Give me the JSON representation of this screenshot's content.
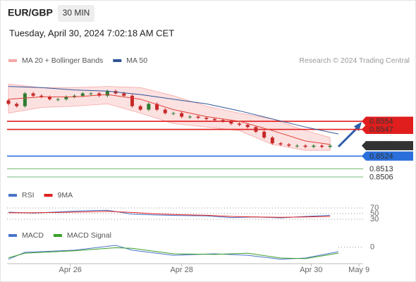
{
  "header": {
    "symbol": "EUR/GBP",
    "interval": "30 MIN",
    "timestamp": "Tuesday, April 30, 2024 7:02:18 AM CET",
    "credit": "Research © 2024 Trading Central"
  },
  "chart_data": [
    {
      "type": "candlestick",
      "xlim": [
        0,
        43
      ],
      "ylim": [
        0.8505,
        0.8595
      ],
      "up_color": "#2e7d32",
      "down_color": "#c62828",
      "open": [
        0.8572,
        0.8569,
        0.8567,
        0.8578,
        0.8576,
        0.8575,
        0.8573,
        0.8573,
        0.8575,
        0.8576,
        0.8578,
        0.8578,
        0.8576,
        0.858,
        0.8578,
        0.8576,
        0.8567,
        0.8564,
        0.8569,
        0.8564,
        0.8561,
        0.8561,
        0.8558,
        0.8558,
        0.8557,
        0.8556,
        0.8555,
        0.8554,
        0.8552,
        0.8551,
        0.8549,
        0.8545,
        0.854,
        0.8535,
        0.8534,
        0.8533,
        0.8533,
        0.8532,
        0.8533,
        0.8532
      ],
      "close": [
        0.8569,
        0.8567,
        0.8578,
        0.8576,
        0.8575,
        0.8573,
        0.8573,
        0.8575,
        0.8576,
        0.8578,
        0.8578,
        0.8576,
        0.858,
        0.8578,
        0.8576,
        0.8567,
        0.8564,
        0.8569,
        0.8564,
        0.8561,
        0.8561,
        0.8558,
        0.8558,
        0.8557,
        0.8556,
        0.8555,
        0.8554,
        0.8552,
        0.8551,
        0.8549,
        0.8545,
        0.854,
        0.8535,
        0.8534,
        0.8533,
        0.8533,
        0.8532,
        0.8533,
        0.8532,
        0.8533
      ],
      "lines": [
        {
          "name": "MA 20 + Bollinger Bands",
          "color": "#e0443a",
          "band_color": "#f7a8a8",
          "x": [
            0,
            4,
            8,
            12,
            16,
            20,
            24,
            28,
            32,
            36,
            39
          ],
          "values": [
            0.8573,
            0.8575,
            0.8575,
            0.8577,
            0.8573,
            0.8564,
            0.8558,
            0.8554,
            0.8546,
            0.8537,
            0.8534
          ],
          "upper": [
            0.8586,
            0.8583,
            0.8583,
            0.8584,
            0.8583,
            0.8576,
            0.8567,
            0.8561,
            0.8556,
            0.8546,
            0.854
          ],
          "lower": [
            0.8561,
            0.8566,
            0.8567,
            0.8569,
            0.8561,
            0.8552,
            0.8549,
            0.8546,
            0.8534,
            0.8529,
            0.8529
          ]
        },
        {
          "name": "MA 50",
          "color": "#2f5597",
          "x": [
            0,
            4,
            8,
            12,
            16,
            20,
            24,
            28,
            32,
            36,
            40
          ],
          "values": [
            0.8584,
            0.8583,
            0.8581,
            0.858,
            0.8577,
            0.8573,
            0.8569,
            0.8563,
            0.8556,
            0.8549,
            0.8543
          ]
        }
      ],
      "levels": [
        {
          "value": 0.8554,
          "color": "#e01e1e",
          "filled": true,
          "line": true
        },
        {
          "value": 0.8547,
          "color": "#e01e1e",
          "filled": true,
          "line": true
        },
        {
          "value": 0.8533,
          "color": "#333333",
          "filled": true,
          "line": false
        },
        {
          "value": 0.8524,
          "color": "#2a6fdb",
          "filled": true,
          "line": true
        },
        {
          "value": 0.8513,
          "color": "#3f9a3f",
          "filled": false,
          "line": true
        },
        {
          "value": 0.8506,
          "color": "#3f9a3f",
          "filled": false,
          "line": true
        }
      ]
    },
    {
      "type": "line",
      "xlim": [
        0,
        43
      ],
      "ylim": [
        20,
        80
      ],
      "yticks": [
        70,
        50,
        30
      ],
      "series": [
        {
          "name": "RSI",
          "color": "#4a74c9",
          "x": [
            0,
            3,
            6,
            9,
            12,
            15,
            18,
            21,
            24,
            27,
            30,
            33,
            36,
            39
          ],
          "values": [
            55,
            52,
            56,
            60,
            62,
            48,
            45,
            43,
            42,
            36,
            38,
            35,
            40,
            44
          ]
        },
        {
          "name": "9MA",
          "color": "#e02020",
          "x": [
            0,
            3,
            6,
            9,
            12,
            15,
            18,
            21,
            24,
            27,
            30,
            33,
            36,
            39
          ],
          "values": [
            53,
            53,
            54,
            56,
            58,
            54,
            49,
            46,
            44,
            40,
            38,
            37,
            38,
            40
          ]
        }
      ]
    },
    {
      "type": "line",
      "xlim": [
        0,
        43
      ],
      "ylim": [
        -0.0005,
        0.0002
      ],
      "yticks": [
        0
      ],
      "xticks": [
        {
          "value": 7.5,
          "label": "Apr 26"
        },
        {
          "value": 21,
          "label": "Apr 28"
        },
        {
          "value": 36.7,
          "label": "Apr 30"
        },
        {
          "value": 42.5,
          "label": "May 9"
        }
      ],
      "series": [
        {
          "name": "MACD",
          "color": "#4a74c9",
          "x": [
            0,
            2,
            8,
            13,
            15,
            20,
            25,
            29,
            33,
            36,
            40
          ],
          "values": [
            -0.0004,
            -0.00017,
            -0.0001,
            6e-05,
            -0.0001,
            -0.00027,
            -0.00022,
            -0.00027,
            -0.0004,
            -0.00036,
            -0.00015
          ]
        },
        {
          "name": "MACD Signal",
          "color": "#3aa02a",
          "x": [
            0,
            2,
            8,
            13,
            15,
            20,
            25,
            29,
            33,
            36,
            40
          ],
          "values": [
            -0.00035,
            -0.0002,
            -0.00012,
            -2e-05,
            -4e-05,
            -0.00022,
            -0.00024,
            -0.0002,
            -0.00036,
            -0.00038,
            -0.0002
          ]
        }
      ]
    }
  ]
}
